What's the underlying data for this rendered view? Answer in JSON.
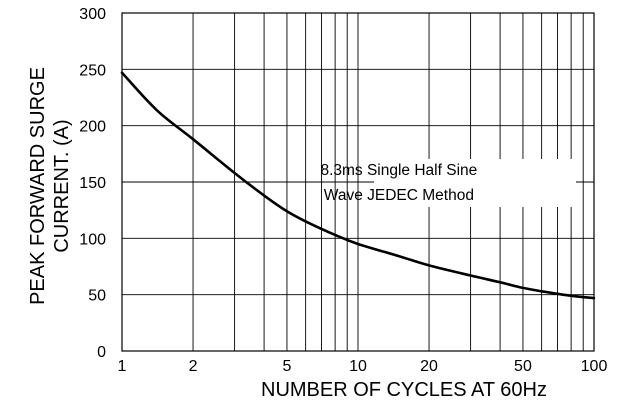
{
  "chart_data": {
    "type": "line",
    "title": "",
    "xlabel": "NUMBER OF CYCLES AT 60Hz",
    "ylabel_lines": [
      "PEAK FORWARD SURGE",
      "CURRENT. (A)"
    ],
    "x_scale": "log",
    "xlim": [
      1,
      100
    ],
    "ylim": [
      0,
      300
    ],
    "x_ticks": [
      {
        "value": 1,
        "label": "1"
      },
      {
        "value": 2,
        "label": "2"
      },
      {
        "value": 5,
        "label": "5"
      },
      {
        "value": 10,
        "label": "10"
      },
      {
        "value": 20,
        "label": "20"
      },
      {
        "value": 50,
        "label": "50"
      },
      {
        "value": 100,
        "label": "100"
      }
    ],
    "y_ticks": [
      {
        "value": 0,
        "label": "0"
      },
      {
        "value": 50,
        "label": "50"
      },
      {
        "value": 100,
        "label": "100"
      },
      {
        "value": 150,
        "label": "150"
      },
      {
        "value": 200,
        "label": "200"
      },
      {
        "value": 250,
        "label": "250"
      },
      {
        "value": 300,
        "label": "300"
      }
    ],
    "grid": true,
    "annotation_lines": [
      "8.3ms Single Half Sine",
      "Wave JEDEC Method"
    ],
    "series": [
      {
        "x": [
          1,
          1.4,
          2,
          3,
          4,
          5,
          6,
          8,
          10,
          15,
          20,
          30,
          40,
          50,
          60,
          80,
          100
        ],
        "values": [
          247,
          214,
          188,
          158,
          138,
          124,
          115,
          103,
          95,
          84,
          76,
          67,
          61,
          56,
          53,
          49,
          47
        ]
      }
    ]
  }
}
